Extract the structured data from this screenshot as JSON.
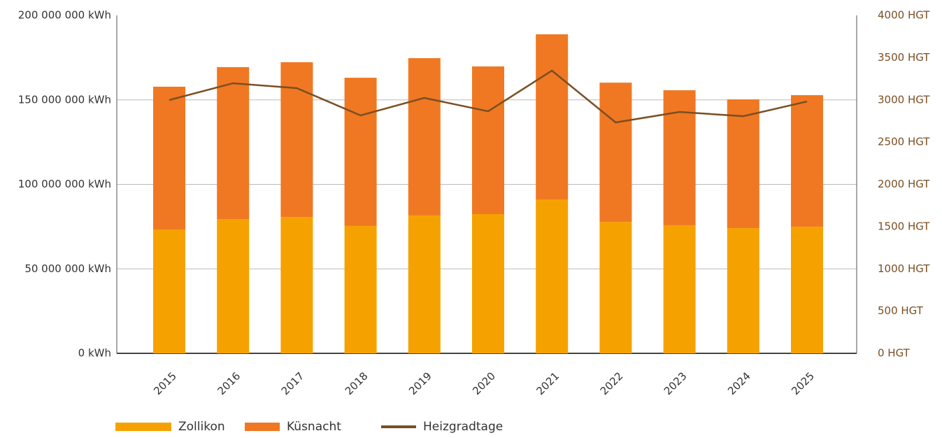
{
  "chart_data": {
    "type": "bar",
    "categories": [
      "2015",
      "2016",
      "2017",
      "2018",
      "2019",
      "2020",
      "2021",
      "2022",
      "2023",
      "2024",
      "2025"
    ],
    "series": [
      {
        "name": "Zollikon",
        "color": "#f5a200",
        "values": [
          73300000,
          79500000,
          80700000,
          75400000,
          81600000,
          82400000,
          91100000,
          77800000,
          75800000,
          74100000,
          74900000
        ]
      },
      {
        "name": "Küsnacht",
        "color": "#f07822",
        "values": [
          84500000,
          89900000,
          91600000,
          87700000,
          93100000,
          87400000,
          97700000,
          82400000,
          79900000,
          76200000,
          77900000
        ]
      },
      {
        "name": "Heizgradtage",
        "color": "#7a4f22",
        "type": "line",
        "axis": "y2",
        "values": [
          2998,
          3197,
          3139,
          2816,
          3023,
          2865,
          3346,
          2733,
          2857,
          2807,
          2981
        ]
      }
    ],
    "stacked": true,
    "ylim": [
      0,
      200000000
    ],
    "yticks": [
      {
        "value": 0,
        "label": "0 kWh"
      },
      {
        "value": 50000000,
        "label": "50 000 000 kWh"
      },
      {
        "value": 100000000,
        "label": "100 000 000 kWh"
      },
      {
        "value": 150000000,
        "label": "150 000 000 kWh"
      },
      {
        "value": 200000000,
        "label": "200 000 000 kWh"
      }
    ],
    "y2lim": [
      0,
      4000
    ],
    "y2ticks": [
      {
        "value": 0,
        "label": "0 HGT"
      },
      {
        "value": 500,
        "label": "500 HGT"
      },
      {
        "value": 1000,
        "label": "1000 HGT"
      },
      {
        "value": 1500,
        "label": "1500 HGT"
      },
      {
        "value": 2000,
        "label": "2000 HGT"
      },
      {
        "value": 2500,
        "label": "2500 HGT"
      },
      {
        "value": 3000,
        "label": "3000 HGT"
      },
      {
        "value": 3500,
        "label": "3500 HGT"
      },
      {
        "value": 4000,
        "label": "4000 HGT"
      }
    ],
    "grid": true,
    "legend": "bottom"
  }
}
